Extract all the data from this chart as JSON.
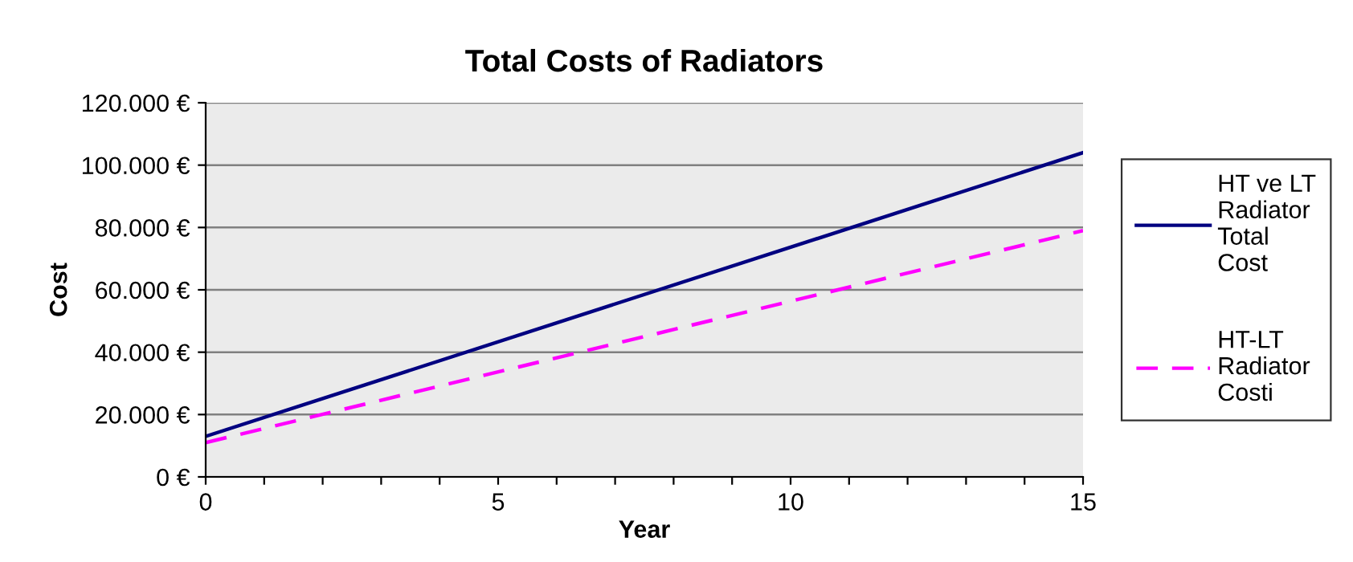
{
  "chart_data": {
    "type": "line",
    "title": "Total Costs of Radiators",
    "xlabel": "Year",
    "ylabel": "Cost",
    "x": [
      0,
      15
    ],
    "series": [
      {
        "name": "HT ve LT Radiator Total Cost",
        "color": "#000080",
        "values": [
          13000,
          104000
        ],
        "line_style": "solid"
      },
      {
        "name": "HT-LT Radiator Costi",
        "color": "#ff00ff",
        "values": [
          11000,
          79000
        ],
        "line_style": "dashed"
      }
    ],
    "xlim": [
      0,
      15
    ],
    "xticks": [
      0,
      {
        "value": 1,
        "label": null
      },
      {
        "value": 2,
        "label": null
      },
      {
        "value": 3,
        "label": null
      },
      {
        "value": 4,
        "label": null
      },
      5,
      {
        "value": 6,
        "label": null
      },
      {
        "value": 7,
        "label": null
      },
      {
        "value": 8,
        "label": null
      },
      {
        "value": 9,
        "label": null
      },
      10,
      {
        "value": 11,
        "label": null
      },
      {
        "value": 12,
        "label": null
      },
      {
        "value": 13,
        "label": null
      },
      {
        "value": 14,
        "label": null
      },
      15
    ],
    "ylim": [
      0,
      120000
    ],
    "yticks": [
      {
        "value": 0,
        "label": "0 €"
      },
      {
        "value": 20000,
        "label": "20.000 €"
      },
      {
        "value": 40000,
        "label": "40.000 €"
      },
      {
        "value": 60000,
        "label": "60.000 €"
      },
      {
        "value": 80000,
        "label": "80.000 €"
      },
      {
        "value": 100000,
        "label": "100.000 €"
      },
      {
        "value": 120000,
        "label": "120.000 €"
      }
    ],
    "grid": "y",
    "legend": "right",
    "marker": "none"
  }
}
